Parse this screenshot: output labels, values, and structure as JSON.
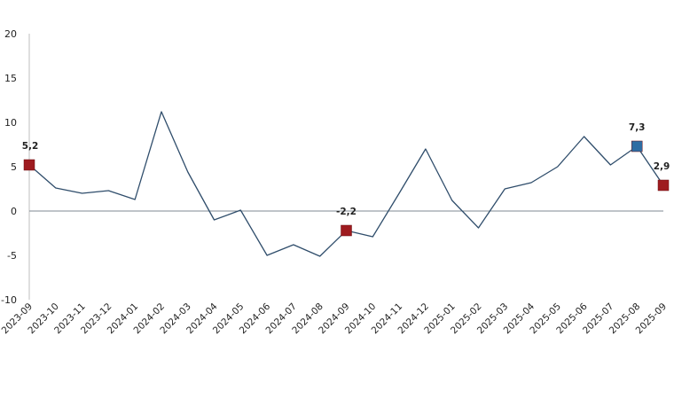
{
  "chart_data": {
    "type": "line",
    "title": "",
    "xlabel": "",
    "ylabel": "",
    "ylim": [
      -10,
      20
    ],
    "yticks": [
      20,
      15,
      10,
      5,
      0,
      -5,
      -10
    ],
    "grid": false,
    "legend": "none",
    "categories": [
      "2023-09",
      "2023-10",
      "2023-11",
      "2023-12",
      "2024-01",
      "2024-02",
      "2024-03",
      "2024-04",
      "2024-05",
      "2024-06",
      "2024-07",
      "2024-08",
      "2024-09",
      "2024-10",
      "2024-11",
      "2024-12",
      "2025-01",
      "2025-02",
      "2025-03",
      "2025-04",
      "2025-05",
      "2025-06",
      "2025-07",
      "2025-08",
      "2025-09"
    ],
    "series": [
      {
        "values": [
          5.2,
          2.6,
          2.0,
          2.3,
          1.3,
          11.2,
          4.4,
          -1.0,
          0.1,
          -5.0,
          -3.8,
          -5.1,
          -2.2,
          -2.9,
          2.0,
          7.0,
          1.2,
          -1.9,
          2.5,
          3.2,
          5.0,
          8.4,
          5.2,
          7.3,
          2.9
        ],
        "color": "#2f4d6b"
      }
    ],
    "highlighted_points": [
      {
        "category": "2023-09",
        "value": 5.2,
        "label": "5,2",
        "color": "#9e1b1f"
      },
      {
        "category": "2024-09",
        "value": -2.2,
        "label": "-2,2",
        "color": "#9e1b1f"
      },
      {
        "category": "2025-08",
        "value": 7.3,
        "label": "7,3",
        "color": "#2e6da4"
      },
      {
        "category": "2025-09",
        "value": 2.9,
        "label": "2,9",
        "color": "#9e1b1f"
      }
    ],
    "zero_line_color": "#7f8a93",
    "axis_color": "#bfbfbf"
  }
}
